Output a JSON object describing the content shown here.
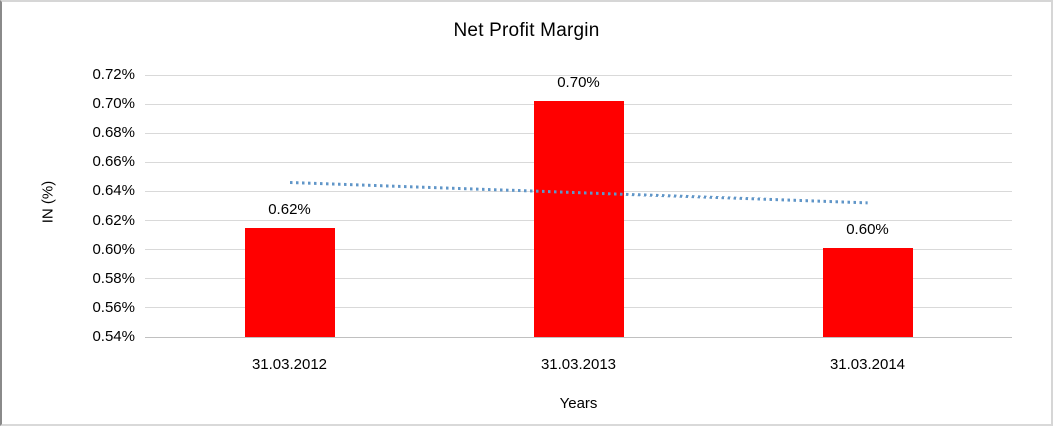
{
  "window": {
    "background": "#FFFFFF",
    "border_color": "#D6D6D6"
  },
  "chart_data": {
    "type": "bar",
    "title": "Net Profit Margin",
    "xlabel": "Years",
    "ylabel": "IN (%)",
    "categories": [
      "31.03.2012",
      "31.03.2013",
      "31.03.2014"
    ],
    "values": [
      0.615,
      0.702,
      0.601
    ],
    "data_labels": [
      "0.62%",
      "0.70%",
      "0.60%"
    ],
    "ylim": [
      0.54,
      0.72
    ],
    "ytick_step": 0.02,
    "ytick_labels": [
      "0.54%",
      "0.56%",
      "0.58%",
      "0.60%",
      "0.62%",
      "0.64%",
      "0.66%",
      "0.68%",
      "0.70%",
      "0.72%"
    ],
    "grid": true,
    "legend": false,
    "bar_color": "#FF0000",
    "gridline_color": "#D9D9D9",
    "axis_line_color": "#C0C0C0",
    "text_color": "#000000",
    "trendline": {
      "type": "linear",
      "style": "dotted",
      "color": "#6096C8",
      "start_value": 0.646,
      "end_value": 0.632
    }
  }
}
